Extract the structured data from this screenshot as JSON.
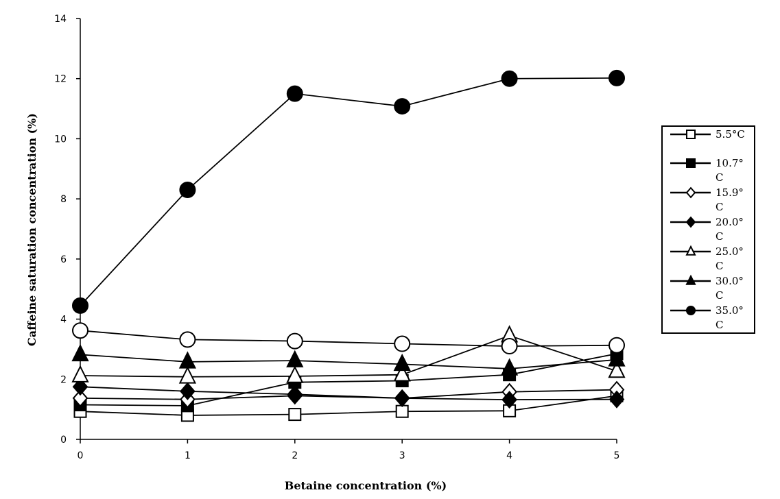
{
  "chart_data": {
    "type": "line",
    "xlabel": "Betaine concentration (%)",
    "ylabel": "Caffeine saturation concentration (%)",
    "xlim": [
      0,
      5
    ],
    "ylim": [
      0,
      14
    ],
    "x_ticks": [
      0,
      1,
      2,
      3,
      4,
      5
    ],
    "y_ticks": [
      0,
      2,
      4,
      6,
      8,
      10,
      12,
      14
    ],
    "x_tick_labels": [
      "0",
      "1",
      "2",
      "3",
      "4",
      "5"
    ],
    "y_tick_labels": [
      "0",
      "2",
      "4",
      "6",
      "8",
      "10",
      "12",
      "14"
    ],
    "x": [
      0,
      1,
      2,
      3,
      4,
      5
    ],
    "grid": false,
    "legend_position": "right",
    "series": [
      {
        "name": "5.5°C",
        "legend_lines": [
          "5.5°C"
        ],
        "marker": "square",
        "fill": "open",
        "values": [
          0.93,
          0.8,
          0.83,
          0.93,
          0.95,
          1.45
        ]
      },
      {
        "name": "10.7°C",
        "legend_lines": [
          "10.7°",
          "C"
        ],
        "marker": "square",
        "fill": "solid",
        "values": [
          1.15,
          1.12,
          1.9,
          1.95,
          2.15,
          2.85
        ]
      },
      {
        "name": "15.9°C",
        "legend_lines": [
          "15.9°",
          "C"
        ],
        "marker": "diamond",
        "fill": "open",
        "values": [
          1.37,
          1.33,
          1.45,
          1.37,
          1.58,
          1.65
        ]
      },
      {
        "name": "20.0°C",
        "legend_lines": [
          "20.0°",
          "C"
        ],
        "marker": "diamond",
        "fill": "solid",
        "values": [
          1.75,
          1.6,
          1.5,
          1.37,
          1.32,
          1.33
        ]
      },
      {
        "name": "25.0°C",
        "legend_lines": [
          "25.0°",
          "C"
        ],
        "marker": "triangle",
        "fill": "open",
        "values": [
          2.12,
          2.08,
          2.1,
          2.15,
          3.45,
          2.27
        ]
      },
      {
        "name": "30.0°C",
        "legend_lines": [
          "30.0°",
          "C"
        ],
        "marker": "triangle",
        "fill": "solid",
        "values": [
          2.82,
          2.58,
          2.62,
          2.5,
          2.35,
          2.65
        ]
      },
      {
        "name": "35.0°C",
        "legend_lines": [
          "35.0°",
          "C"
        ],
        "marker": "circle",
        "fill": "solid",
        "values": [
          4.45,
          8.3,
          11.5,
          11.08,
          12.0,
          12.02
        ]
      },
      {
        "name": "35.0°C (open)",
        "legend_lines": [
          "35.0°",
          "C"
        ],
        "marker": "circle",
        "fill": "open",
        "in_legend": false,
        "values": [
          3.62,
          3.32,
          3.27,
          3.18,
          3.1,
          3.13
        ]
      }
    ]
  }
}
